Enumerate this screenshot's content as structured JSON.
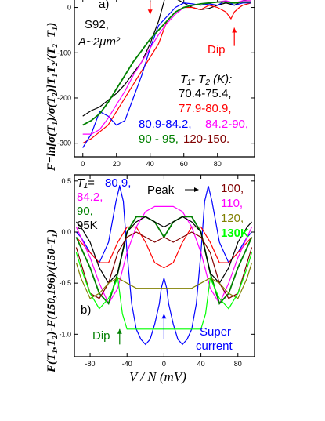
{
  "chart_data": [
    {
      "type": "line",
      "panel_label": "a)",
      "sample": "S92,",
      "area": "A~2μm²",
      "ylabel": "F=ln[σ(T₁)/σ(T₂)]T₁T₂/(T₂–T₁)",
      "xlabel": "",
      "xlim": [
        -5,
        102
      ],
      "ylim": [
        -330,
        20
      ],
      "xticks": [
        "0",
        "20",
        "40",
        "60",
        "80"
      ],
      "yticks": [
        "0",
        "-100",
        "-200",
        "-300"
      ],
      "legend_title": "T₁- T₂ (K):",
      "dip_label": "Dip",
      "legend_entries": [
        {
          "label": "70.4-75.4,",
          "color": "#000000"
        },
        {
          "label": "77.9-80.9,",
          "color": "#ff0000"
        },
        {
          "label": "80.9-84.2,",
          "color": "#0000ff"
        },
        {
          "label": "84.2-90,",
          "color": "#ff00ff"
        },
        {
          "label": "90 - 95,",
          "color": "#008000"
        },
        {
          "label": "120-150.",
          "color": "#800000"
        }
      ],
      "series": [
        {
          "color": "#000000",
          "x": [
            0,
            5,
            10,
            15,
            20,
            25,
            30,
            35,
            40,
            45,
            48,
            50,
            55,
            60,
            65,
            70,
            75,
            80,
            85,
            90,
            95,
            100
          ],
          "y": [
            -240,
            -228,
            -220,
            -205,
            -190,
            -170,
            -145,
            -120,
            -80,
            -30,
            10,
            40,
            20,
            10,
            0,
            -5,
            -2,
            5,
            10,
            5,
            15,
            20
          ]
        },
        {
          "color": "#ff0000",
          "x": [
            0,
            5,
            10,
            15,
            20,
            25,
            30,
            35,
            40,
            45,
            50,
            55,
            60,
            65,
            70,
            75,
            80,
            85,
            88,
            90,
            93,
            95,
            100
          ],
          "y": [
            -300,
            -290,
            -275,
            -260,
            -230,
            -200,
            -170,
            -140,
            -110,
            -80,
            -30,
            -10,
            0,
            0,
            -5,
            5,
            0,
            -10,
            -25,
            -10,
            0,
            5,
            10
          ]
        },
        {
          "color": "#0000ff",
          "x": [
            0,
            5,
            10,
            15,
            20,
            25,
            30,
            35,
            40,
            45,
            50,
            55,
            60,
            65,
            70,
            75,
            80,
            85,
            90,
            95,
            100
          ],
          "y": [
            -310,
            -280,
            -230,
            -240,
            -260,
            -250,
            -200,
            -150,
            -90,
            -40,
            -20,
            0,
            10,
            8,
            5,
            8,
            5,
            15,
            5,
            10,
            10
          ]
        },
        {
          "color": "#ff00ff",
          "x": [
            0,
            5,
            10,
            15,
            20,
            25,
            30,
            35,
            40,
            45,
            50,
            55,
            60,
            65,
            70,
            75,
            80,
            85,
            90,
            95,
            100
          ],
          "y": [
            -280,
            -280,
            -270,
            -245,
            -215,
            -185,
            -150,
            -120,
            -90,
            -60,
            -35,
            -15,
            0,
            5,
            8,
            10,
            12,
            15,
            10,
            15,
            15
          ]
        },
        {
          "color": "#008000",
          "x": [
            0,
            5,
            10,
            15,
            20,
            25,
            30,
            35,
            40,
            45,
            50,
            55,
            60,
            65,
            70,
            75,
            80,
            85,
            90,
            95,
            100
          ],
          "y": [
            -260,
            -250,
            -235,
            -210,
            -180,
            -150,
            -120,
            -95,
            -70,
            -50,
            -30,
            -10,
            0,
            5,
            8,
            10,
            12,
            12,
            10,
            12,
            12
          ]
        }
      ],
      "arrows": [
        {
          "x": 40,
          "y_from": 15,
          "y_to": -15,
          "color": "#ff0000"
        },
        {
          "x": 90,
          "y_from": -85,
          "y_to": -45,
          "color": "#ff0000"
        }
      ]
    },
    {
      "type": "line",
      "panel_label": "b)",
      "ylabel": "F(T₁,T₂)-F(150,196)/(150-T₁)",
      "xlabel": "V / N (mV)",
      "xlim": [
        -97,
        98
      ],
      "ylim": [
        -1.22,
        0.56
      ],
      "xticks": [
        "-80",
        "-40",
        "0",
        "40",
        "80"
      ],
      "yticks": [
        "0.5",
        "0.0",
        "-0.5",
        "-1.0"
      ],
      "legend_left": {
        "title": "T₁=",
        "entries": [
          {
            "label": "80.9,",
            "color": "#0000ff"
          },
          {
            "label": "84.2,",
            "color": "#ff00ff"
          },
          {
            "label": "90,",
            "color": "#008000"
          },
          {
            "label": "95K",
            "color": "#000000"
          }
        ]
      },
      "legend_right": [
        {
          "label": "100,",
          "color": "#800000"
        },
        {
          "label": "110,",
          "color": "#ff00ff"
        },
        {
          "label": "120,",
          "color": "#808000"
        },
        {
          "label": "130K",
          "color": "#00ff00"
        }
      ],
      "annotations": {
        "peak": "Peak",
        "dip": "Dip",
        "supercurrent_1": "Super",
        "supercurrent_2": "current"
      },
      "series": [
        {
          "color": "#0000ff",
          "x": [
            -95,
            -90,
            -80,
            -70,
            -60,
            -52,
            -48,
            -44,
            -40,
            -35,
            -30,
            -25,
            -20,
            -15,
            -10,
            -5,
            -3,
            0,
            3,
            5,
            10,
            15,
            20,
            25,
            30,
            35,
            40,
            44,
            48,
            52,
            60,
            70,
            80,
            90,
            95
          ],
          "y": [
            0.0,
            -0.05,
            -0.2,
            -0.3,
            -0.1,
            0.3,
            0.45,
            0.3,
            -0.2,
            -0.7,
            -0.95,
            -1.05,
            -1.1,
            -1.05,
            -0.9,
            -0.7,
            -0.55,
            -0.45,
            -0.55,
            -0.7,
            -0.9,
            -1.05,
            -1.1,
            -1.05,
            -0.95,
            -0.7,
            -0.2,
            0.3,
            0.45,
            0.3,
            -0.1,
            -0.3,
            -0.2,
            -0.05,
            0.0
          ]
        },
        {
          "color": "#ff0000",
          "x": [
            -95,
            -90,
            -80,
            -70,
            -60,
            -50,
            -40,
            -30,
            -20,
            -10,
            0,
            10,
            20,
            30,
            40,
            50,
            60,
            70,
            80,
            90,
            95
          ],
          "y": [
            -0.05,
            -0.1,
            -0.2,
            -0.3,
            -0.3,
            -0.1,
            0.05,
            0.05,
            -0.1,
            -0.3,
            -0.35,
            -0.3,
            -0.1,
            0.05,
            0.05,
            -0.1,
            -0.3,
            -0.3,
            -0.2,
            -0.1,
            -0.05
          ]
        },
        {
          "color": "#ff00ff",
          "x": [
            -95,
            -90,
            -80,
            -70,
            -60,
            -50,
            -40,
            -30,
            -20,
            -10,
            0,
            10,
            20,
            30,
            40,
            50,
            60,
            70,
            80,
            90,
            95
          ],
          "y": [
            0.05,
            -0.05,
            -0.25,
            -0.5,
            -0.7,
            -0.55,
            -0.2,
            0.05,
            0.2,
            0.25,
            0.25,
            0.25,
            0.2,
            0.05,
            -0.2,
            -0.55,
            -0.7,
            -0.5,
            -0.25,
            -0.05,
            0.05
          ]
        },
        {
          "color": "#008000",
          "x": [
            -95,
            -90,
            -80,
            -70,
            -60,
            -50,
            -40,
            -30,
            -20,
            -10,
            0,
            10,
            20,
            30,
            40,
            50,
            60,
            70,
            80,
            90,
            95
          ],
          "y": [
            -0.05,
            -0.15,
            -0.35,
            -0.6,
            -0.7,
            -0.4,
            0.0,
            0.15,
            0.15,
            0.1,
            -0.05,
            0.1,
            0.15,
            0.15,
            0.0,
            -0.4,
            -0.7,
            -0.6,
            -0.35,
            -0.15,
            -0.05
          ]
        },
        {
          "color": "#000000",
          "x": [
            -95,
            -90,
            -80,
            -70,
            -60,
            -50,
            -40,
            -30,
            -20,
            -10,
            0,
            10,
            20,
            30,
            40,
            50,
            60,
            70,
            80,
            90,
            95
          ],
          "y": [
            0.1,
            0.05,
            -0.1,
            -0.35,
            -0.5,
            -0.4,
            0.0,
            0.1,
            0.15,
            0.1,
            0.05,
            0.1,
            0.15,
            0.1,
            0.0,
            -0.4,
            -0.5,
            -0.35,
            -0.1,
            0.05,
            0.1
          ]
        },
        {
          "color": "#800000",
          "x": [
            -95,
            -90,
            -80,
            -70,
            -60,
            -50,
            -40,
            -30,
            -20,
            -10,
            0,
            10,
            20,
            30,
            40,
            50,
            60,
            70,
            80,
            90,
            95
          ],
          "y": [
            -0.15,
            -0.3,
            -0.6,
            -0.65,
            -0.5,
            -0.2,
            -0.05,
            0.0,
            -0.05,
            -0.1,
            -0.05,
            -0.1,
            -0.05,
            0.0,
            -0.05,
            -0.2,
            -0.5,
            -0.65,
            -0.6,
            -0.3,
            -0.15
          ]
        },
        {
          "color": "#808000",
          "x": [
            -95,
            -90,
            -80,
            -70,
            -60,
            -50,
            -40,
            -30,
            -20,
            -10,
            0,
            10,
            20,
            30,
            40,
            50,
            60,
            70,
            80,
            90,
            95
          ],
          "y": [
            -0.3,
            -0.45,
            -0.65,
            -0.6,
            -0.5,
            -0.45,
            -0.5,
            -0.55,
            -0.55,
            -0.55,
            -0.55,
            -0.55,
            -0.55,
            -0.55,
            -0.5,
            -0.45,
            -0.5,
            -0.6,
            -0.65,
            -0.45,
            -0.3
          ]
        },
        {
          "color": "#00ff00",
          "x": [
            -95,
            -90,
            -80,
            -70,
            -60,
            -50,
            -45,
            -40,
            -30,
            -20,
            -10,
            0,
            10,
            20,
            30,
            40,
            45,
            50,
            60,
            70,
            80,
            90,
            95
          ],
          "y": [
            -0.2,
            -0.35,
            -0.6,
            -0.75,
            -0.65,
            -0.45,
            -0.8,
            -0.95,
            -0.95,
            -0.95,
            -0.95,
            -0.95,
            -0.95,
            -0.95,
            -0.95,
            -0.95,
            -0.8,
            -0.45,
            -0.65,
            -0.75,
            -0.6,
            -0.35,
            -0.2
          ]
        }
      ],
      "arrows": [
        {
          "x": -48,
          "y_from": -1.1,
          "y_to": -0.95,
          "color": "#008000"
        },
        {
          "x": 0,
          "y_from": -1.05,
          "y_to": -0.8,
          "color": "#0000ff"
        }
      ]
    }
  ]
}
